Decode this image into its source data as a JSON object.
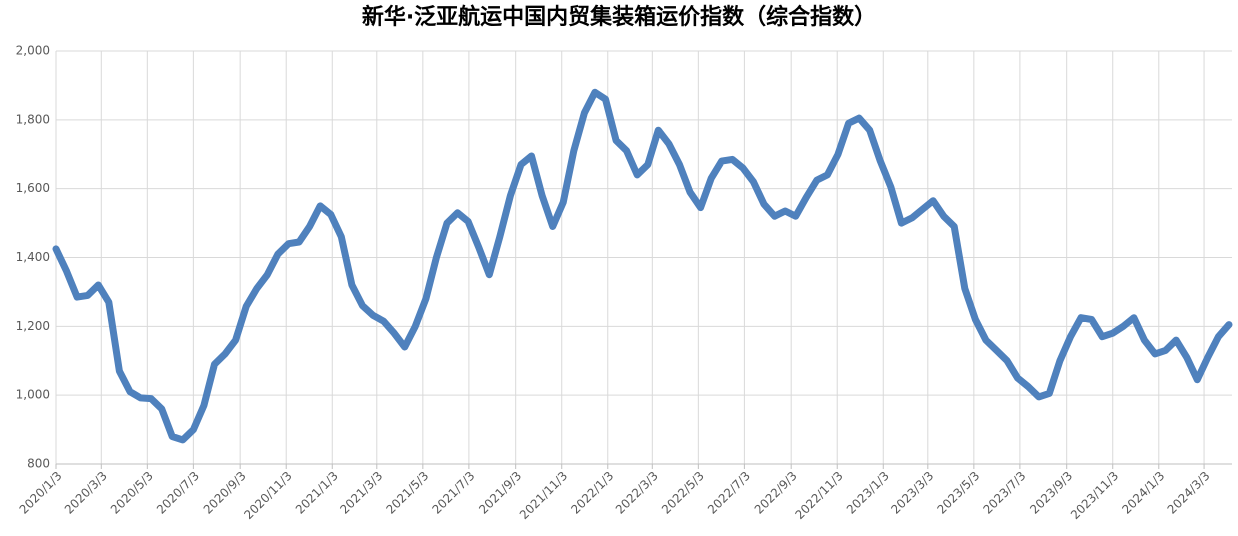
{
  "chart_data": {
    "type": "line",
    "title": "新华·泛亚航运中国内贸集装箱运价指数（综合指数）",
    "x": [
      "2020/1/3",
      "2020/1/17",
      "2020/1/31",
      "2020/2/14",
      "2020/2/28",
      "2020/3/13",
      "2020/3/27",
      "2020/4/10",
      "2020/4/24",
      "2020/5/8",
      "2020/5/22",
      "2020/6/5",
      "2020/6/19",
      "2020/7/3",
      "2020/7/17",
      "2020/7/31",
      "2020/8/14",
      "2020/8/28",
      "2020/9/11",
      "2020/9/25",
      "2020/10/9",
      "2020/10/23",
      "2020/11/6",
      "2020/11/20",
      "2020/12/4",
      "2020/12/18",
      "2021/1/1",
      "2021/1/15",
      "2021/1/29",
      "2021/2/12",
      "2021/2/26",
      "2021/3/12",
      "2021/3/26",
      "2021/4/9",
      "2021/4/23",
      "2021/5/7",
      "2021/5/21",
      "2021/6/4",
      "2021/6/18",
      "2021/7/2",
      "2021/7/16",
      "2021/7/30",
      "2021/8/13",
      "2021/8/27",
      "2021/9/10",
      "2021/9/24",
      "2021/10/8",
      "2021/10/22",
      "2021/11/5",
      "2021/11/19",
      "2021/12/3",
      "2021/12/17",
      "2021/12/31",
      "2022/1/14",
      "2022/1/28",
      "2022/2/11",
      "2022/2/25",
      "2022/3/11",
      "2022/3/25",
      "2022/4/8",
      "2022/4/22",
      "2022/5/6",
      "2022/5/20",
      "2022/6/3",
      "2022/6/17",
      "2022/7/1",
      "2022/7/15",
      "2022/7/29",
      "2022/8/12",
      "2022/8/26",
      "2022/9/9",
      "2022/9/23",
      "2022/10/7",
      "2022/10/21",
      "2022/11/4",
      "2022/11/18",
      "2022/12/2",
      "2022/12/16",
      "2022/12/30",
      "2023/1/13",
      "2023/1/27",
      "2023/2/10",
      "2023/2/24",
      "2023/3/10",
      "2023/3/24",
      "2023/4/7",
      "2023/4/21",
      "2023/5/5",
      "2023/5/19",
      "2023/6/2",
      "2023/6/16",
      "2023/6/30",
      "2023/7/14",
      "2023/7/28",
      "2023/8/11",
      "2023/8/25",
      "2023/9/8",
      "2023/9/22",
      "2023/10/6",
      "2023/10/20",
      "2023/11/3",
      "2023/11/17",
      "2023/12/1",
      "2023/12/15",
      "2023/12/29",
      "2024/1/12",
      "2024/1/26",
      "2024/2/9",
      "2024/2/23",
      "2024/3/8",
      "2024/3/22",
      "2024/4/5"
    ],
    "series": [
      {
        "color": "#4f81bd",
        "values": [
          1425,
          1360,
          1285,
          1290,
          1320,
          1270,
          1070,
          1010,
          992,
          990,
          960,
          880,
          870,
          900,
          970,
          1090,
          1120,
          1160,
          1258,
          1310,
          1350,
          1410,
          1440,
          1445,
          1490,
          1550,
          1525,
          1460,
          1320,
          1260,
          1232,
          1215,
          1180,
          1140,
          1200,
          1280,
          1400,
          1500,
          1530,
          1505,
          1430,
          1350,
          1460,
          1580,
          1670,
          1695,
          1580,
          1490,
          1560,
          1710,
          1820,
          1880,
          1860,
          1740,
          1710,
          1640,
          1670,
          1770,
          1730,
          1670,
          1590,
          1545,
          1630,
          1680,
          1685,
          1660,
          1620,
          1555,
          1520,
          1535,
          1520,
          1575,
          1625,
          1640,
          1700,
          1790,
          1805,
          1770,
          1680,
          1605,
          1500,
          1515,
          1540,
          1565,
          1520,
          1490,
          1310,
          1220,
          1160,
          1130,
          1100,
          1050,
          1025,
          995,
          1005,
          1100,
          1170,
          1225,
          1220,
          1170,
          1180,
          1200,
          1225,
          1160,
          1120,
          1130,
          1160,
          1110,
          1045,
          1110,
          1170,
          1205
        ]
      }
    ],
    "xlim": [
      "2020/1/3",
      "2024/4/9"
    ],
    "xticks": [
      "2020/1/3",
      "2020/3/3",
      "2020/5/3",
      "2020/7/3",
      "2020/9/3",
      "2020/11/3",
      "2021/1/3",
      "2021/3/3",
      "2021/5/3",
      "2021/7/3",
      "2021/9/3",
      "2021/11/3",
      "2022/1/3",
      "2022/3/3",
      "2022/5/3",
      "2022/7/3",
      "2022/9/3",
      "2022/11/3",
      "2023/1/3",
      "2023/3/3",
      "2023/5/3",
      "2023/7/3",
      "2023/9/3",
      "2023/11/3",
      "2024/1/3",
      "2024/3/3"
    ],
    "ylim": [
      800,
      2000
    ],
    "yticks": [
      800,
      {
        "value": 1000,
        "label": "1,000"
      },
      {
        "value": 1200,
        "label": "1,200"
      },
      {
        "value": 1400,
        "label": "1,400"
      },
      {
        "value": 1600,
        "label": "1,600"
      },
      {
        "value": 1800,
        "label": "1,800"
      },
      {
        "value": 2000,
        "label": "2,000"
      }
    ],
    "grid": true
  }
}
